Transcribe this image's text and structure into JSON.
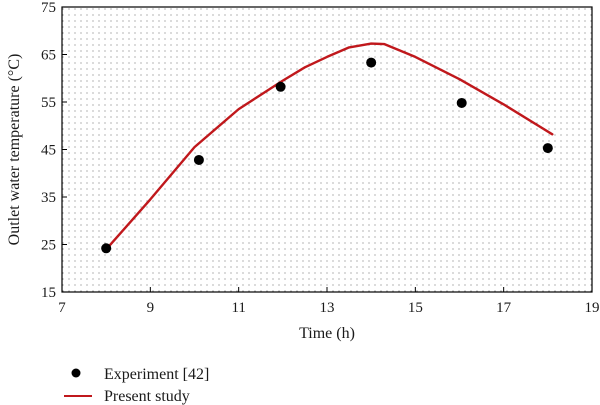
{
  "chart_data": {
    "type": "line",
    "title": "",
    "xlabel": "Time (h)",
    "ylabel": "Outlet water temperature (°C)",
    "xlim": [
      7,
      19
    ],
    "ylim": [
      15,
      75
    ],
    "xticks": [
      7,
      9,
      11,
      13,
      15,
      17,
      19
    ],
    "yticks": [
      15,
      25,
      35,
      45,
      55,
      65,
      75
    ],
    "grid": "dotted",
    "legend_position": "bottom-left, below plot",
    "series": [
      {
        "name": "Experiment [42]",
        "kind": "scatter",
        "color": "#000000",
        "points": [
          {
            "x": 8.0,
            "y": 24.2
          },
          {
            "x": 10.1,
            "y": 42.8
          },
          {
            "x": 11.95,
            "y": 58.2
          },
          {
            "x": 14.0,
            "y": 63.3
          },
          {
            "x": 16.05,
            "y": 54.8
          },
          {
            "x": 18.0,
            "y": 45.3
          }
        ]
      },
      {
        "name": "Present study",
        "kind": "line",
        "color": "#c0181c",
        "points": [
          {
            "x": 8.0,
            "y": 24.0
          },
          {
            "x": 9.0,
            "y": 34.5
          },
          {
            "x": 10.0,
            "y": 45.5
          },
          {
            "x": 11.0,
            "y": 53.5
          },
          {
            "x": 12.0,
            "y": 59.5
          },
          {
            "x": 12.5,
            "y": 62.3
          },
          {
            "x": 13.0,
            "y": 64.5
          },
          {
            "x": 13.5,
            "y": 66.5
          },
          {
            "x": 14.0,
            "y": 67.3
          },
          {
            "x": 14.3,
            "y": 67.2
          },
          {
            "x": 15.0,
            "y": 64.5
          },
          {
            "x": 16.0,
            "y": 59.8
          },
          {
            "x": 17.0,
            "y": 54.5
          },
          {
            "x": 18.1,
            "y": 48.2
          }
        ]
      }
    ]
  }
}
